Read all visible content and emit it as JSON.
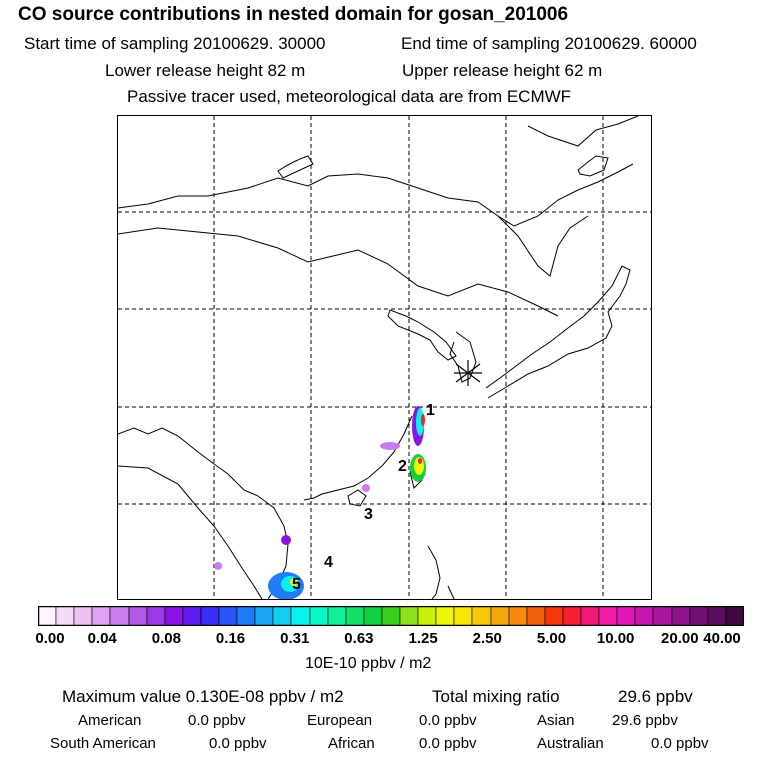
{
  "header": {
    "title": "CO  source contributions in nested domain for gosan_201006",
    "start_time": "Start time of sampling 20100629. 30000",
    "end_time": "End time of sampling 20100629. 60000",
    "lower_height": "Lower release height   82 m",
    "upper_height": "Upper release height   62 m",
    "tracer_note": "Passive tracer used, meteorological data are from ECMWF"
  },
  "colorbar": {
    "tick_labels": [
      "0.00",
      "0.04",
      "0.08",
      "0.16",
      "0.31",
      "0.63",
      "1.25",
      "2.50",
      "5.00",
      "10.00",
      "20.00",
      "40.00"
    ],
    "units": "10E-10 ppbv / m2",
    "colors": [
      "#fff5ff",
      "#f6dcf8",
      "#ecc2f5",
      "#dfa3f2",
      "#c77ded",
      "#b05ae8",
      "#9a3ae6",
      "#8a12e5",
      "#5e1bf2",
      "#3a30f7",
      "#2a54f8",
      "#1f7ef5",
      "#1aa6f2",
      "#14ccf0",
      "#0af2f0",
      "#0af7c8",
      "#10f09a",
      "#14e06a",
      "#12d040",
      "#38d01a",
      "#8ee01a",
      "#c8f00a",
      "#eef50a",
      "#f7e60a",
      "#f7c80a",
      "#f7a80a",
      "#f7880a",
      "#f7600a",
      "#f5380c",
      "#f51e34",
      "#f01a78",
      "#f01aa8",
      "#e01ab8",
      "#c418b0",
      "#a8169c",
      "#8c1488",
      "#701070",
      "#58105c",
      "#400a40"
    ]
  },
  "stats": {
    "max_label": "Maximum value  0.130E-08 ppbv / m2",
    "total_label": "Total mixing ratio",
    "total_value": "29.6 ppbv",
    "regions": [
      {
        "name": "American",
        "value": "0.0 ppbv"
      },
      {
        "name": "European",
        "value": "0.0 ppbv"
      },
      {
        "name": "Asian",
        "value": "29.6 ppbv"
      },
      {
        "name": "South American",
        "value": "0.0 ppbv"
      },
      {
        "name": "African",
        "value": "0.0 ppbv"
      },
      {
        "name": "Australian",
        "value": "0.0 ppbv"
      }
    ]
  },
  "chart_data": {
    "type": "heatmap",
    "title": "CO  source contributions in nested domain for gosan_201006",
    "colorbar_label": "10E-10 ppbv / m2",
    "colorbar_levels": [
      0.0,
      0.04,
      0.08,
      0.16,
      0.31,
      0.63,
      1.25,
      2.5,
      5.0,
      10.0,
      20.0,
      40.0
    ],
    "receptor_marker": "asterisk",
    "source_region_labels": [
      "1",
      "2",
      "3",
      "4",
      "5"
    ],
    "maximum_value": "0.130E-08 ppbv / m2",
    "total_mixing_ratio_ppbv": 29.6,
    "contributions_ppbv": {
      "American": 0.0,
      "European": 0.0,
      "Asian": 29.6,
      "South American": 0.0,
      "African": 0.0,
      "Australian": 0.0
    }
  }
}
